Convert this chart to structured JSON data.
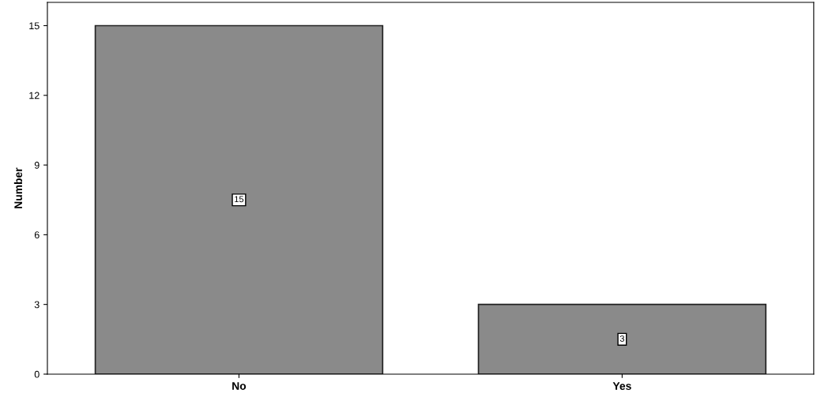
{
  "chart_data": {
    "type": "bar",
    "ylabel": "Number",
    "categories": [
      "No",
      "Yes"
    ],
    "values": [
      15,
      3
    ],
    "color": "#8a8a8a",
    "ylim": [
      0,
      16
    ],
    "yticks": [
      0,
      3,
      6,
      9,
      12,
      15
    ],
    "data_labels": true,
    "grid": false
  }
}
